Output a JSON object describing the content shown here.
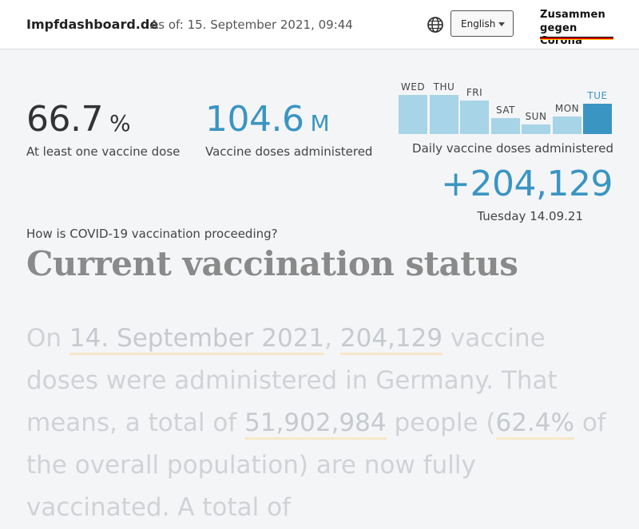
{
  "header": {
    "site_name": "Impfdashboard.de",
    "as_of": "As of: 15. September 2021, 09:44",
    "language": "English",
    "logo_line1": "Zusammen",
    "logo_line2": "gegen Corona",
    "flag_colors": [
      "#000000",
      "#dd0000",
      "#ffcc00"
    ]
  },
  "stats": {
    "one_dose_value": "66.7",
    "one_dose_unit": "%",
    "one_dose_label": "At least one vaccine dose",
    "doses_value": "104.6",
    "doses_unit": "M",
    "doses_label": "Vaccine doses administered"
  },
  "daily": {
    "label": "Daily vaccine doses administered",
    "value": "+204,129",
    "date": "Tuesday 14.09.21",
    "days": [
      {
        "name": "WED",
        "level": 0.72
      },
      {
        "name": "THU",
        "level": 0.72
      },
      {
        "name": "FRI",
        "level": 0.62
      },
      {
        "name": "SAT",
        "level": 0.3
      },
      {
        "name": "SUN",
        "level": 0.17
      },
      {
        "name": "MON",
        "level": 0.33
      },
      {
        "name": "TUE",
        "level": 0.56,
        "today": true
      }
    ]
  },
  "section": {
    "question": "How is COVID-19 vaccination proceeding?",
    "title": "Current vaccination status"
  },
  "paragraph": {
    "t1": "On ",
    "date": "14. September 2021",
    "t2": ", ",
    "doses": "204,129",
    "t3": " vaccine doses were administered in Germany. That means, a total of ",
    "people": "51,902,984",
    "t4": " people (",
    "percent": "62.4%",
    "t5": " of the overall population) are now fully vaccinated. A total of"
  }
}
